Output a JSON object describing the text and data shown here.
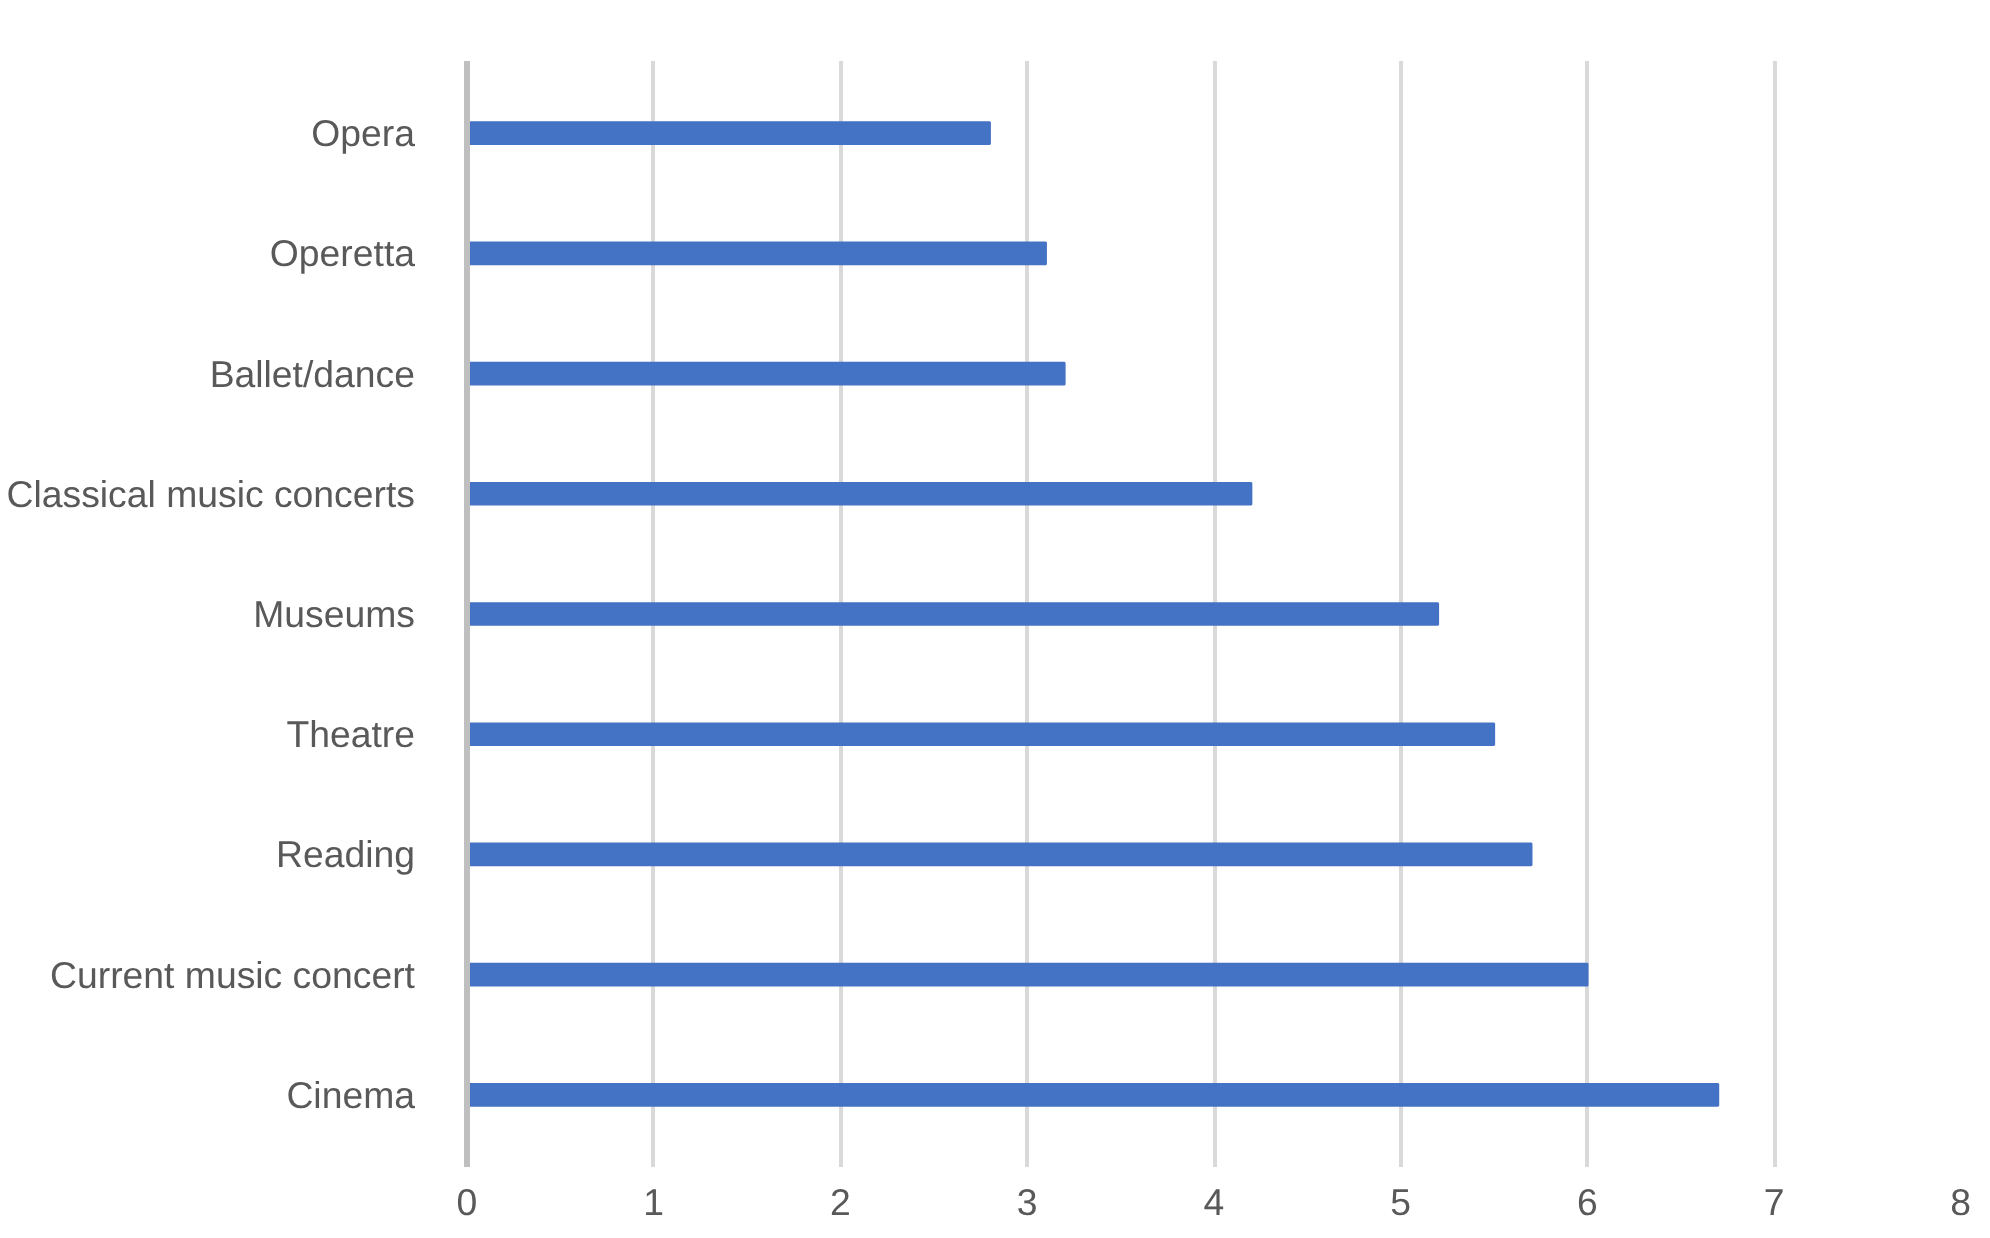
{
  "chart_data": {
    "type": "bar",
    "orientation": "horizontal",
    "categories": [
      "Opera",
      "Operetta",
      "Ballet/dance",
      "Classical music concerts",
      "Museums",
      "Theatre",
      "Reading",
      "Current music concert",
      "Cinema"
    ],
    "values": [
      2.8,
      3.1,
      3.2,
      4.2,
      5.2,
      5.5,
      5.7,
      6.0,
      6.7
    ],
    "color": "#4472c4",
    "xlim": [
      0,
      8
    ],
    "xticks": [
      0,
      1,
      2,
      3,
      4,
      5,
      6,
      7,
      8
    ],
    "grid": "x"
  }
}
